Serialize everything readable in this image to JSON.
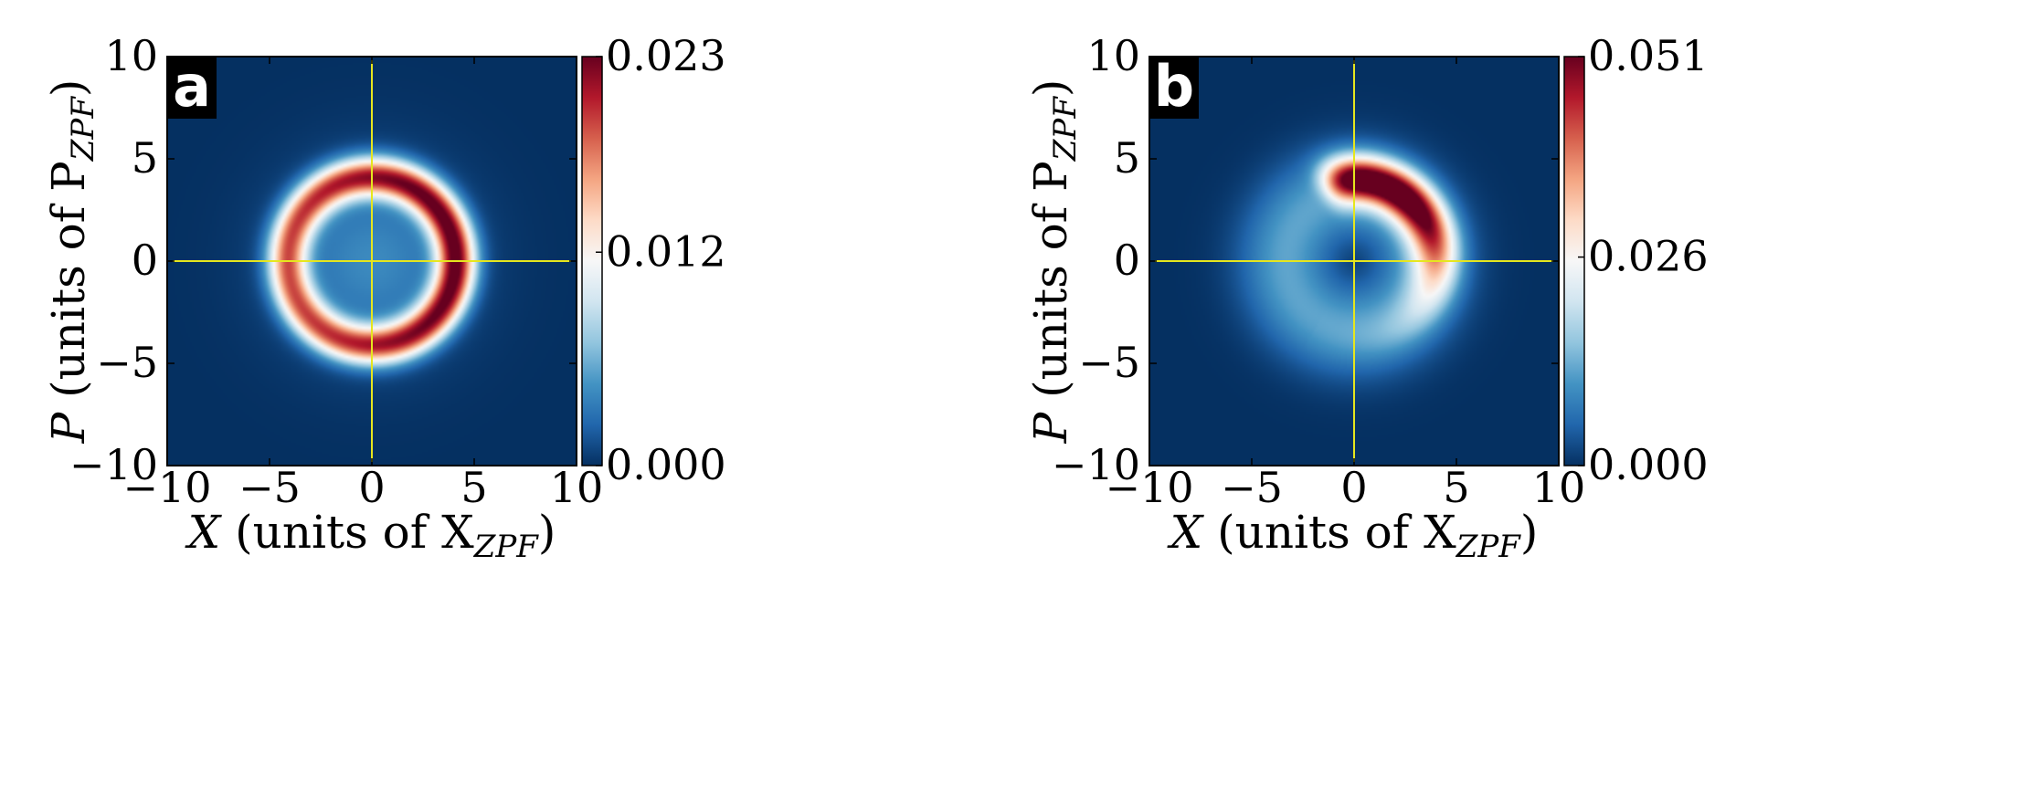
{
  "chart_data": [
    {
      "type": "heatmap",
      "panel_label": "a",
      "title": "",
      "xlabel": "X (units of X",
      "xlabel_sub": "ZPF",
      "xlabel_end": ")",
      "ylabel": "P (units of P",
      "ylabel_sub": "ZPF",
      "ylabel_end": ")",
      "xlim": [
        -10,
        10
      ],
      "ylim": [
        -10,
        10
      ],
      "xticks": [
        -10,
        -5,
        0,
        5,
        10
      ],
      "yticks": [
        -10,
        -5,
        0,
        5,
        10
      ],
      "xtick_labels": [
        "−10",
        "−5",
        "0",
        "5",
        "10"
      ],
      "ytick_labels": [
        "−10",
        "−5",
        "0",
        "5",
        "10"
      ],
      "colorbar": {
        "min": 0.0,
        "max": 0.023,
        "ticks": [
          0.0,
          0.012,
          0.023
        ],
        "tick_labels": [
          "0.000",
          "0.012",
          "0.023"
        ],
        "colormap": "RdBu_r"
      },
      "crosshair": {
        "x": 0,
        "y": 0,
        "color": "#e6e61e"
      },
      "distribution": {
        "shape": "ring",
        "center": [
          0,
          0
        ],
        "radius": 4.1,
        "width": 0.95,
        "peak": 0.023,
        "peak_angle_deg": 10,
        "asymmetry": 0.22
      }
    },
    {
      "type": "heatmap",
      "panel_label": "b",
      "title": "",
      "xlabel": "X (units of X",
      "xlabel_sub": "ZPF",
      "xlabel_end": ")",
      "ylabel": "P (units of P",
      "ylabel_sub": "ZPF",
      "ylabel_end": ")",
      "xlim": [
        -10,
        10
      ],
      "ylim": [
        -10,
        10
      ],
      "xticks": [
        -10,
        -5,
        0,
        5,
        10
      ],
      "yticks": [
        -10,
        -5,
        0,
        5,
        10
      ],
      "xtick_labels": [
        "−10",
        "−5",
        "0",
        "5",
        "10"
      ],
      "ytick_labels": [
        "−10",
        "−5",
        "0",
        "5",
        "10"
      ],
      "colorbar": {
        "min": 0.0,
        "max": 0.051,
        "ticks": [
          0.0,
          0.026,
          0.051
        ],
        "tick_labels": [
          "0.000",
          "0.026",
          "0.051"
        ],
        "colormap": "RdBu_r"
      },
      "crosshair": {
        "x": 0,
        "y": 0,
        "color": "#e6e61e"
      },
      "distribution": {
        "shape": "crescent",
        "center": [
          0,
          0
        ],
        "radius": 4.0,
        "width": 1.1,
        "peak": 0.051,
        "peak_angle_deg": 60,
        "arc_span_deg": 110,
        "background_ring": 0.012
      }
    }
  ]
}
